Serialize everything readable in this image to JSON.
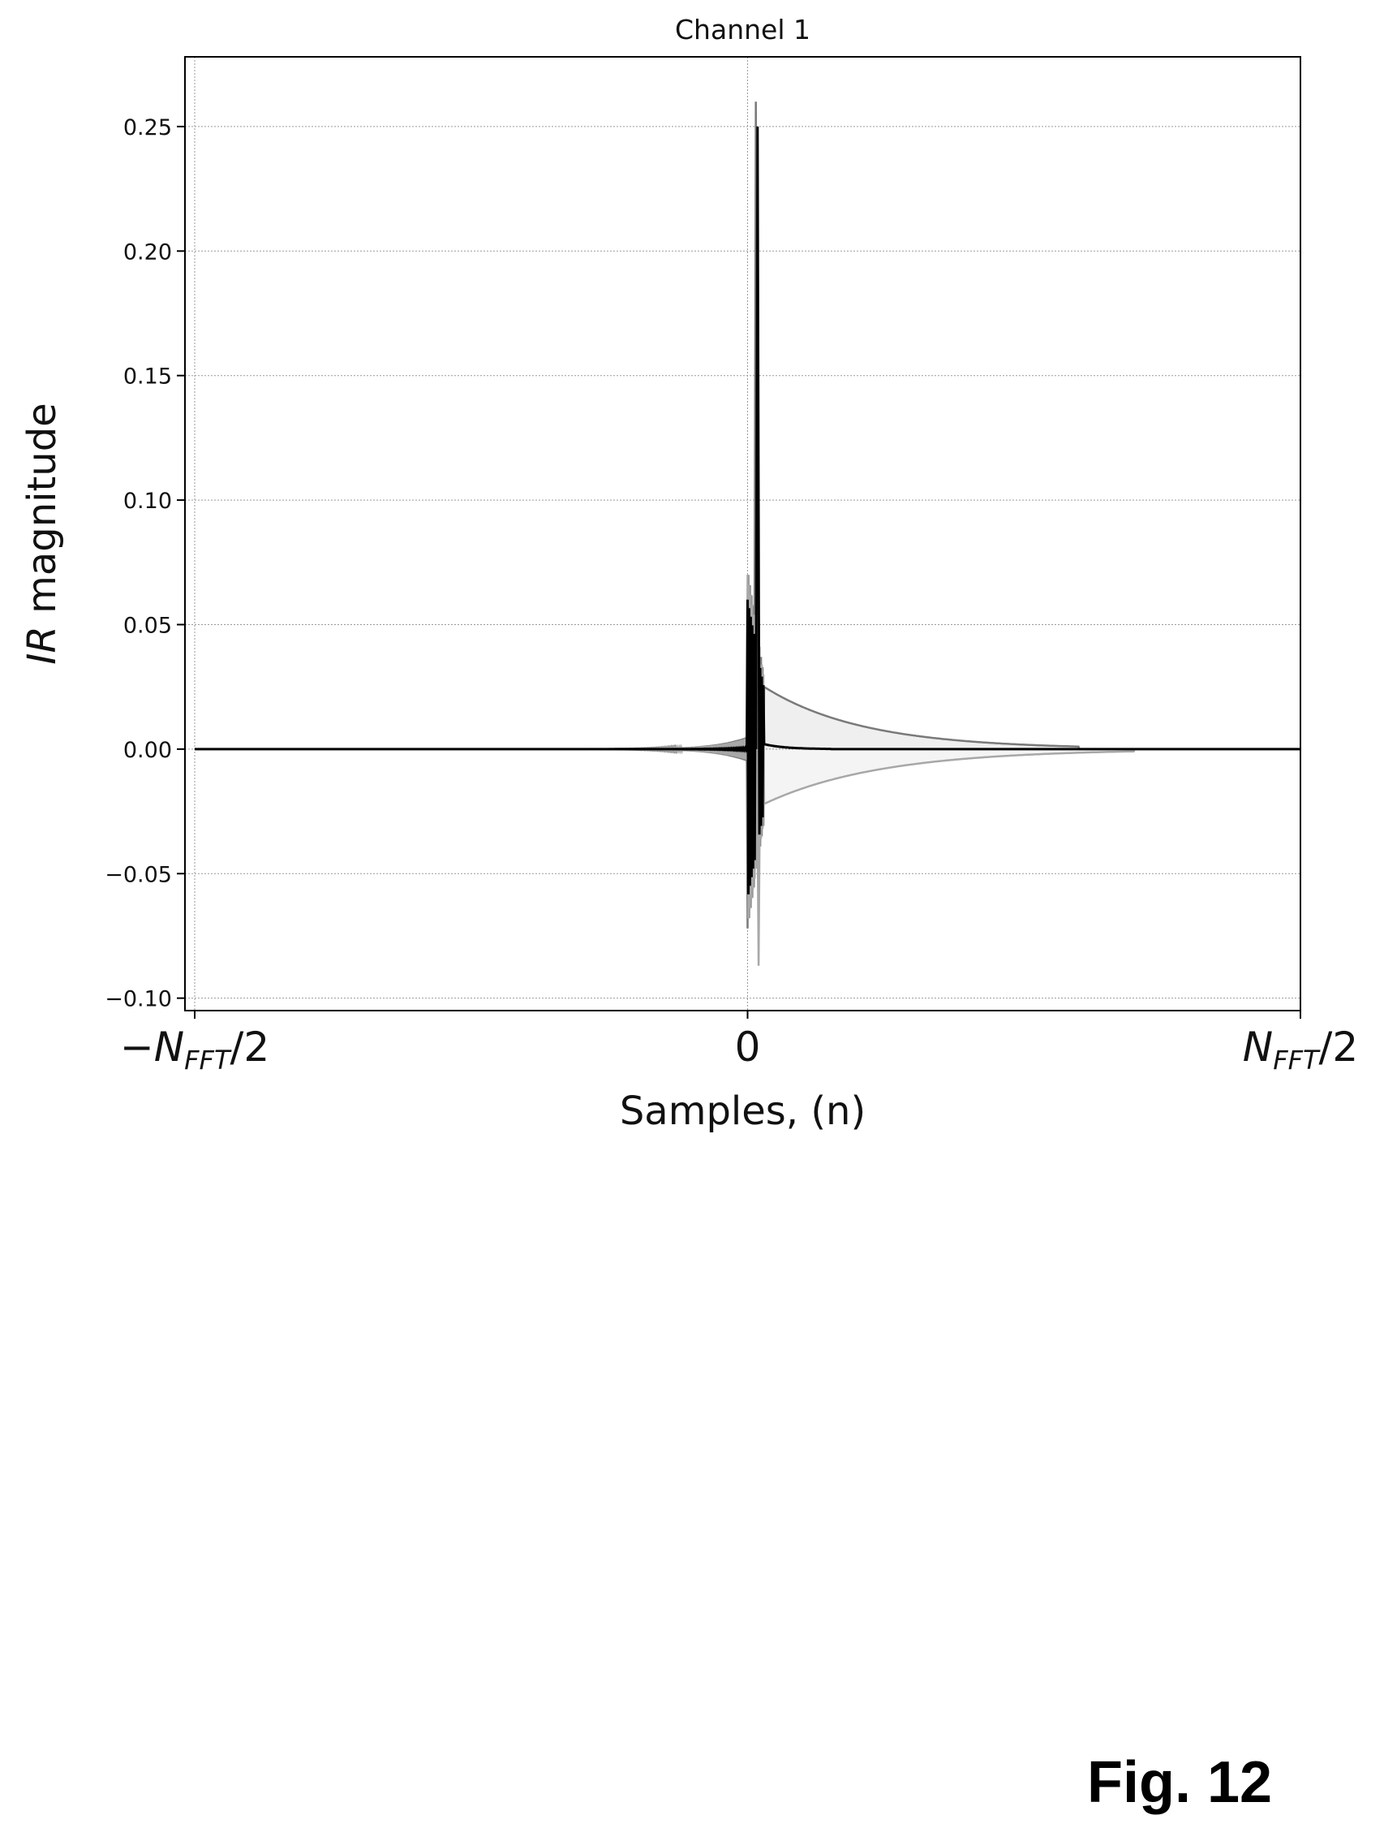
{
  "chart_data": {
    "type": "line",
    "title": "Channel 1",
    "xlabel": "Samples, (n)",
    "ylabel": "IR magnitude",
    "ylabel_italic_part": "IR",
    "ylabel_rest": " magnitude",
    "xlim": [
      -1,
      1
    ],
    "ylim": [
      -0.105,
      0.278
    ],
    "x_ticks": [
      {
        "value": -1,
        "prefix": "−",
        "main": "N",
        "sub": "FFT",
        "suffix": "/2"
      },
      {
        "value": 0,
        "prefix": "",
        "main": "0",
        "sub": "",
        "suffix": ""
      },
      {
        "value": 1,
        "prefix": "",
        "main": "N",
        "sub": "FFT",
        "suffix": "/2"
      }
    ],
    "y_ticks": [
      {
        "value": 0.25,
        "label": "0.25"
      },
      {
        "value": 0.2,
        "label": "0.20"
      },
      {
        "value": 0.15,
        "label": "0.15"
      },
      {
        "value": 0.1,
        "label": "0.10"
      },
      {
        "value": 0.05,
        "label": "0.05"
      },
      {
        "value": 0.0,
        "label": "0.00"
      },
      {
        "value": -0.05,
        "label": "−0.05"
      },
      {
        "value": -0.1,
        "label": "−0.10"
      }
    ],
    "grid": true,
    "series": [
      {
        "color": "#7a7a7a",
        "peak_x": 0.015,
        "peak_y": 0.26,
        "ringing_max": 0.072,
        "tail_start": 0.03,
        "tail_end": 0.6,
        "tail_value_at_start": 0.025
      },
      {
        "color": "#a8a8a8",
        "peak_x": 0.02,
        "peak_y": -0.087,
        "ringing_max": -0.07,
        "tail_start": 0.03,
        "tail_end": 0.7,
        "tail_value_at_start": -0.022
      },
      {
        "color": "#000000",
        "peak_x": 0.018,
        "peak_y": 0.25,
        "ringing_max": -0.06,
        "tail_start": 0.03,
        "tail_end": 0.15,
        "tail_value_at_start": 0.002
      }
    ]
  },
  "figure_label": "Fig. 12"
}
